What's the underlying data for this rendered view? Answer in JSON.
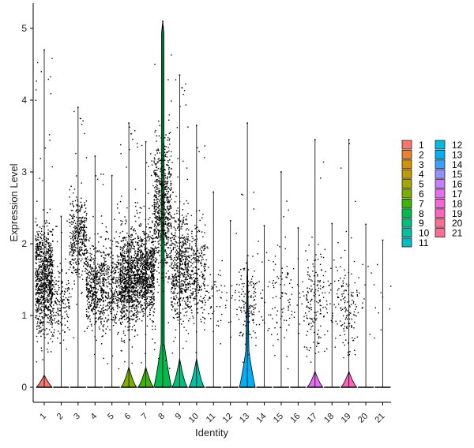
{
  "chart_data": {
    "type": "violin",
    "title": "",
    "xlabel": "Identity",
    "ylabel": "Expression Level",
    "ylim": [
      -0.25,
      5.4
    ],
    "yticks": [
      0,
      1,
      2,
      3,
      4,
      5
    ],
    "categories": [
      "1",
      "2",
      "3",
      "4",
      "5",
      "6",
      "7",
      "8",
      "9",
      "10",
      "11",
      "12",
      "13",
      "14",
      "15",
      "16",
      "17",
      "18",
      "19",
      "20",
      "21"
    ],
    "series": [
      {
        "name": "1",
        "color": "#F8766D",
        "max": 4.7,
        "violin_height": 0.17
      },
      {
        "name": "2",
        "color": "#EA8331",
        "max": 2.38,
        "violin_height": 0.0
      },
      {
        "name": "3",
        "color": "#D89000",
        "max": 3.9,
        "violin_height": 0.0
      },
      {
        "name": "4",
        "color": "#C09B00",
        "max": 3.22,
        "violin_height": 0.0
      },
      {
        "name": "5",
        "color": "#A3A500",
        "max": 2.95,
        "violin_height": 0.0
      },
      {
        "name": "6",
        "color": "#7CAE00",
        "max": 3.68,
        "violin_height": 0.28
      },
      {
        "name": "7",
        "color": "#39B600",
        "max": 3.42,
        "violin_height": 0.28
      },
      {
        "name": "8",
        "color": "#00BB4E",
        "max": 5.1,
        "violin_height": 5.1
      },
      {
        "name": "9",
        "color": "#00BF7D",
        "max": 4.35,
        "violin_height": 0.4
      },
      {
        "name": "10",
        "color": "#00C1A3",
        "max": 3.65,
        "violin_height": 0.4
      },
      {
        "name": "11",
        "color": "#00BFC4",
        "max": 2.72,
        "violin_height": 0.0
      },
      {
        "name": "12",
        "color": "#00BAE0",
        "max": 2.32,
        "violin_height": 0.0
      },
      {
        "name": "13",
        "color": "#00B0F6",
        "max": 3.68,
        "violin_height": 1.85
      },
      {
        "name": "14",
        "color": "#35A2FF",
        "max": 2.25,
        "violin_height": 0.0
      },
      {
        "name": "15",
        "color": "#9590FF",
        "max": 3.0,
        "violin_height": 0.0
      },
      {
        "name": "16",
        "color": "#C77CFF",
        "max": 2.22,
        "violin_height": 0.0
      },
      {
        "name": "17",
        "color": "#E76BF3",
        "max": 3.45,
        "violin_height": 0.22
      },
      {
        "name": "18",
        "color": "#FA62DB",
        "max": 2.28,
        "violin_height": 0.0
      },
      {
        "name": "19",
        "color": "#FF62BC",
        "max": 3.45,
        "violin_height": 0.22
      },
      {
        "name": "20",
        "color": "#FF6C91",
        "max": 2.27,
        "violin_height": 0.0
      },
      {
        "name": "21",
        "color": "#FF6C91",
        "max": 2.05,
        "violin_height": 0.0
      }
    ],
    "legend": {
      "placement": "right",
      "columns": 2
    },
    "grid": false
  }
}
